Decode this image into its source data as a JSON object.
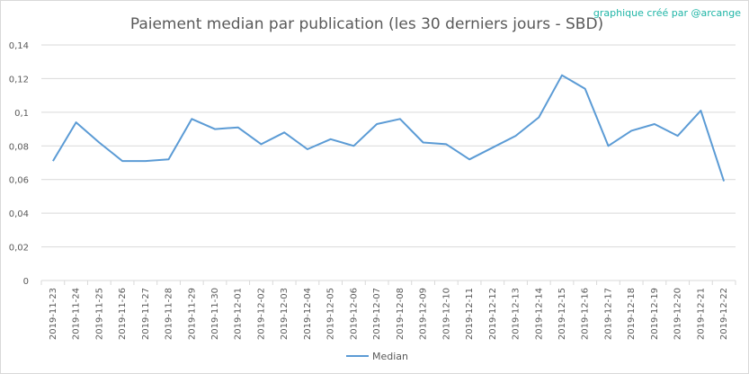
{
  "credit": "graphique créé par @arcange",
  "colors": {
    "line": "#5b9bd5",
    "grid": "#d9d9d9",
    "axis_text": "#595959",
    "title": "#595959",
    "credit": "#1fb5a6"
  },
  "chart_data": {
    "type": "line",
    "title": "Paiement median par publication (les 30 derniers jours - SBD)",
    "xlabel": "",
    "ylabel": "",
    "ylim": [
      0,
      0.14
    ],
    "yticks": [
      0,
      0.02,
      0.04,
      0.06,
      0.08,
      0.1,
      0.12,
      0.14
    ],
    "ytick_labels": [
      "0",
      "0,02",
      "0,04",
      "0,06",
      "0,08",
      "0,1",
      "0,12",
      "0,14"
    ],
    "grid": true,
    "legend_position": "bottom",
    "categories": [
      "2019-11-23",
      "2019-11-24",
      "2019-11-25",
      "2019-11-26",
      "2019-11-27",
      "2019-11-28",
      "2019-11-29",
      "2019-11-30",
      "2019-12-01",
      "2019-12-02",
      "2019-12-03",
      "2019-12-04",
      "2019-12-05",
      "2019-12-06",
      "2019-12-07",
      "2019-12-08",
      "2019-12-09",
      "2019-12-10",
      "2019-12-11",
      "2019-12-12",
      "2019-12-13",
      "2019-12-14",
      "2019-12-15",
      "2019-12-16",
      "2019-12-17",
      "2019-12-18",
      "2019-12-19",
      "2019-12-20",
      "2019-12-21",
      "2019-12-22"
    ],
    "series": [
      {
        "name": "Median",
        "values": [
          0.071,
          0.094,
          0.082,
          0.071,
          0.071,
          0.072,
          0.096,
          0.09,
          0.091,
          0.081,
          0.088,
          0.078,
          0.084,
          0.08,
          0.093,
          0.096,
          0.082,
          0.081,
          0.072,
          0.079,
          0.086,
          0.097,
          0.122,
          0.114,
          0.08,
          0.089,
          0.093,
          0.086,
          0.101,
          0.059
        ]
      }
    ]
  }
}
